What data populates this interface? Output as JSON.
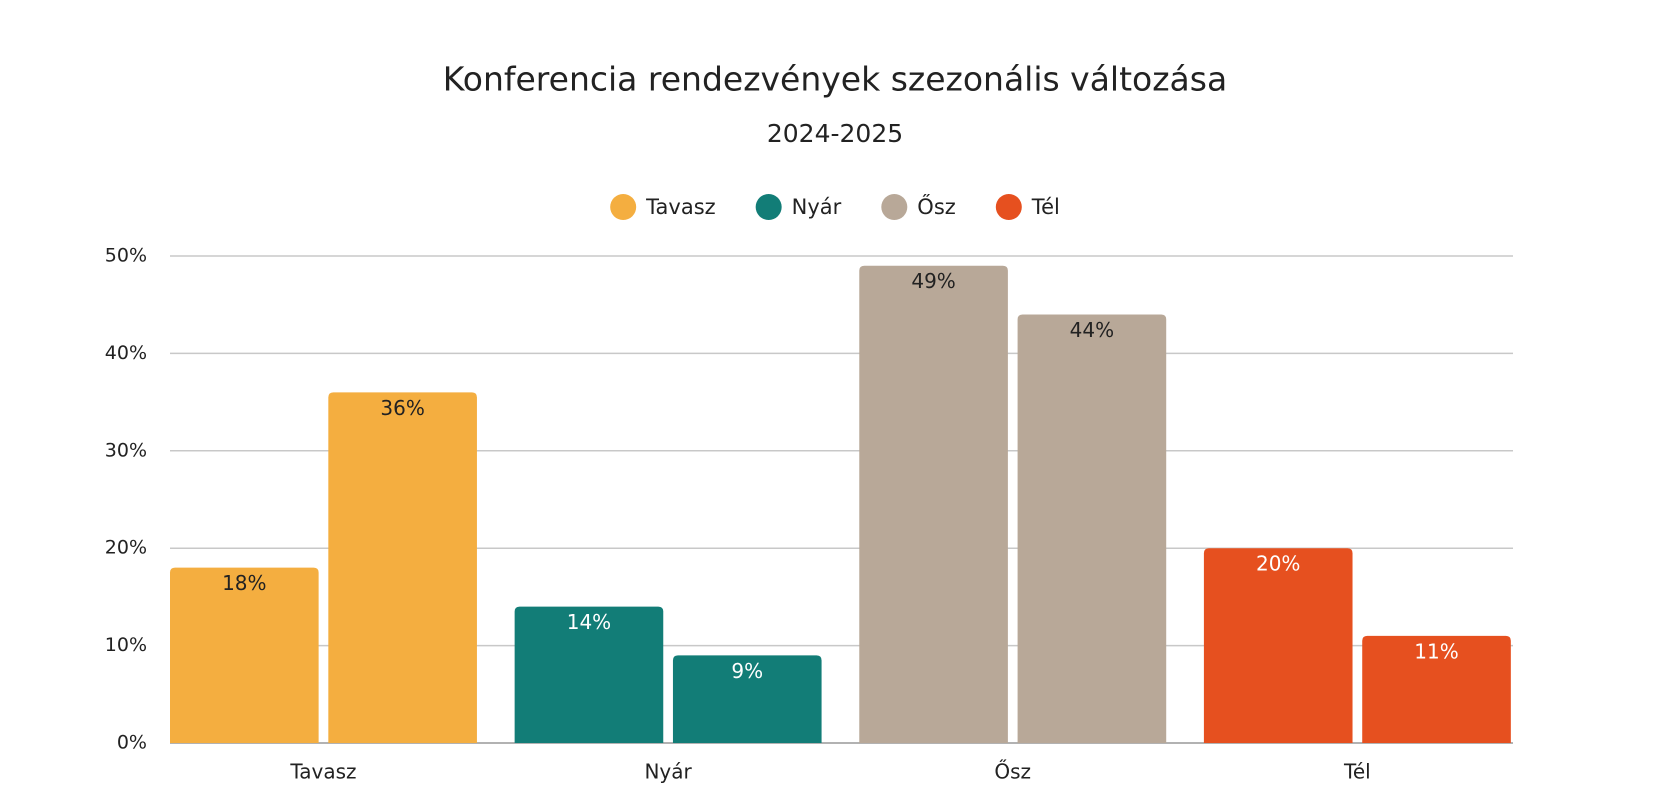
{
  "chart_data": {
    "type": "bar",
    "title": "Konferencia rendezvények szezonális változása",
    "subtitle": "2024-2025",
    "categories": [
      "Tavasz",
      "Nyár",
      "Ősz",
      "Tél"
    ],
    "colors": [
      "#f4ae40",
      "#127d77",
      "#b8a898",
      "#e6501f"
    ],
    "values": [
      [
        18,
        36
      ],
      [
        14,
        9
      ],
      [
        49,
        44
      ],
      [
        20,
        11
      ]
    ],
    "value_labels": [
      [
        "18%",
        "36%"
      ],
      [
        "14%",
        "9%"
      ],
      [
        "49%",
        "44%"
      ],
      [
        "20%",
        "11%"
      ]
    ],
    "ylim": [
      0,
      50
    ],
    "yticks": [
      {
        "value": 0,
        "label": "0%"
      },
      {
        "value": 10,
        "label": "10%"
      },
      {
        "value": 20,
        "label": "20%"
      },
      {
        "value": 30,
        "label": "30%"
      },
      {
        "value": 40,
        "label": "40%"
      },
      {
        "value": 50,
        "label": "50%"
      }
    ],
    "grid": true
  }
}
